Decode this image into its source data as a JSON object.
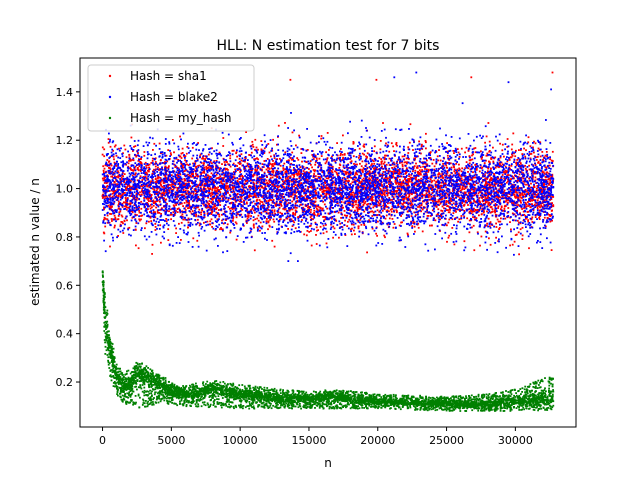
{
  "chart_data": {
    "type": "scatter",
    "title": "HLL: N estimation test for 7 bits",
    "xlabel": "n",
    "ylabel": "estimated n value / n",
    "xlim": [
      -1638,
      34406
    ],
    "ylim": [
      0.014,
      1.54
    ],
    "xticks": [
      0,
      5000,
      10000,
      15000,
      20000,
      25000,
      30000
    ],
    "yticks": [
      0.2,
      0.4,
      0.6,
      0.8,
      1.0,
      1.2,
      1.4
    ],
    "ytick_labels": [
      "0.2",
      "0.4",
      "0.6",
      "0.8",
      "1.0",
      "1.2",
      "1.4"
    ],
    "grid": false,
    "legend_position": "top-left",
    "series": [
      {
        "name": "Hash = sha1",
        "color": "#ff0000",
        "band": {
          "x_start": 0,
          "x_end": 32768,
          "center": 1.0,
          "spread": 0.08
        },
        "outliers": [
          [
            13650,
            1.45
          ],
          [
            19900,
            1.45
          ],
          [
            26800,
            1.46
          ],
          [
            32700,
            1.48
          ],
          [
            3600,
            0.73
          ],
          [
            12500,
            0.76
          ]
        ]
      },
      {
        "name": "Hash = blake2",
        "color": "#0000ff",
        "band": {
          "x_start": 0,
          "x_end": 32768,
          "center": 1.0,
          "spread": 0.09
        },
        "outliers": [
          [
            22800,
            1.48
          ],
          [
            21200,
            1.46
          ],
          [
            29500,
            1.44
          ],
          [
            13500,
            0.7
          ],
          [
            14200,
            0.7
          ],
          [
            32600,
            1.41
          ]
        ]
      },
      {
        "name": "Hash = my_hash",
        "color": "#008000",
        "curve": [
          [
            0,
            0.66
          ],
          [
            200,
            0.45
          ],
          [
            600,
            0.32
          ],
          [
            1000,
            0.23
          ],
          [
            1500,
            0.17
          ],
          [
            2000,
            0.2
          ],
          [
            2600,
            0.24
          ],
          [
            3500,
            0.21
          ],
          [
            5000,
            0.16
          ],
          [
            6500,
            0.15
          ],
          [
            8000,
            0.17
          ],
          [
            10000,
            0.15
          ],
          [
            13000,
            0.13
          ],
          [
            15000,
            0.13
          ],
          [
            16500,
            0.14
          ],
          [
            20000,
            0.12
          ],
          [
            25000,
            0.11
          ],
          [
            28000,
            0.11
          ],
          [
            30000,
            0.12
          ],
          [
            32768,
            0.13
          ]
        ],
        "lower": [
          [
            0,
            0.6
          ],
          [
            200,
            0.3
          ],
          [
            600,
            0.2
          ],
          [
            1000,
            0.14
          ],
          [
            1600,
            0.11
          ],
          [
            2600,
            0.09
          ],
          [
            4000,
            0.11
          ],
          [
            6000,
            0.1
          ],
          [
            10000,
            0.09
          ],
          [
            15000,
            0.09
          ],
          [
            20000,
            0.09
          ],
          [
            25000,
            0.08
          ],
          [
            32768,
            0.08
          ]
        ],
        "upper": [
          [
            0,
            0.67
          ],
          [
            200,
            0.55
          ],
          [
            600,
            0.4
          ],
          [
            1000,
            0.28
          ],
          [
            1500,
            0.24
          ],
          [
            2000,
            0.25
          ],
          [
            2600,
            0.28
          ],
          [
            4000,
            0.24
          ],
          [
            5500,
            0.18
          ],
          [
            8000,
            0.21
          ],
          [
            10000,
            0.19
          ],
          [
            13000,
            0.17
          ],
          [
            15000,
            0.16
          ],
          [
            17000,
            0.17
          ],
          [
            20000,
            0.15
          ],
          [
            25000,
            0.14
          ],
          [
            28000,
            0.15
          ],
          [
            30000,
            0.17
          ],
          [
            32768,
            0.23
          ]
        ]
      }
    ]
  }
}
